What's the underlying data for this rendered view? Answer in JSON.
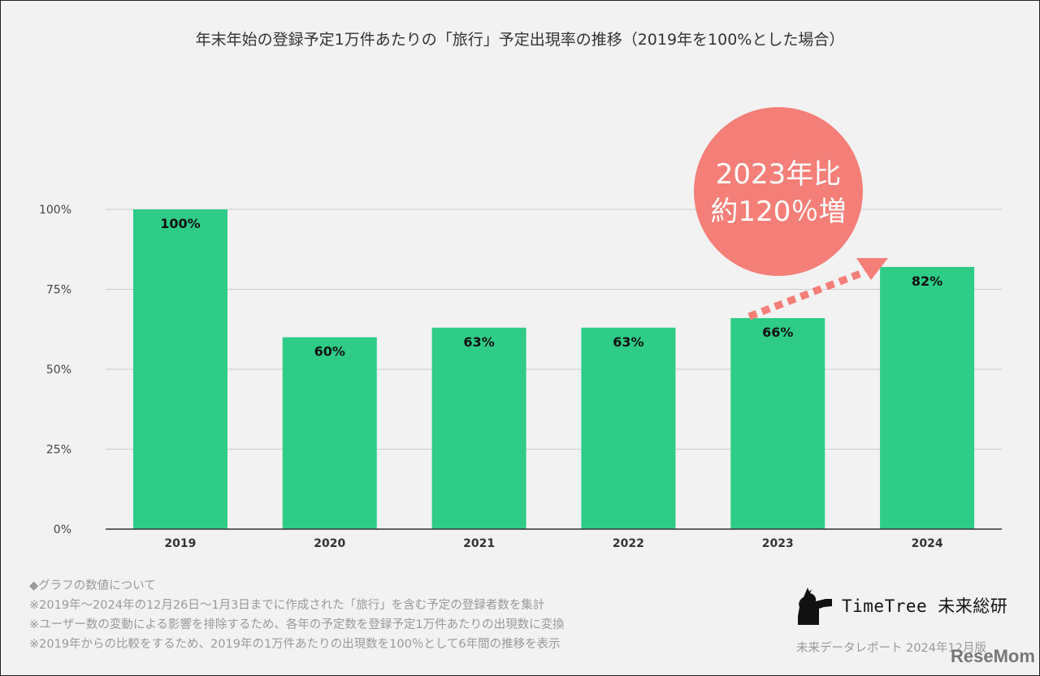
{
  "chart_data": {
    "type": "bar",
    "title": "年末年始の登録予定1万件あたりの「旅行」予定出現率の推移（2019年を100%とした場合）",
    "categories": [
      "2019",
      "2020",
      "2021",
      "2022",
      "2023",
      "2024"
    ],
    "values": [
      100,
      60,
      63,
      63,
      66,
      82
    ],
    "data_labels": [
      "100%",
      "60%",
      "63%",
      "63%",
      "66%",
      "82%"
    ],
    "ylim": [
      0,
      100
    ],
    "yticks": [
      "0%",
      "25%",
      "50%",
      "75%",
      "100%"
    ],
    "ytick_values": [
      0,
      25,
      50,
      75,
      100
    ],
    "grid": true,
    "bar_color": "#2ecc87",
    "annotation": {
      "line1": "2023年比",
      "line2": "約120％増",
      "color": "#f47f78"
    }
  },
  "notes": [
    "◆グラフの数値について",
    "※2019年～2024年の12月26日～1月3日までに作成された「旅行」を含む予定の登録者数を集計",
    "※ユーザー数の変動による影響を排除するため、各年の予定数を登録予定1万件あたりの出現数に変換",
    "※2019年からの比較をするため、2019年の1万件あたりの出現数を100％として6年間の推移を表示"
  ],
  "logo_text": "TimeTree 未来総研",
  "report_label": "未来データレポート 2024年12月版",
  "watermark": "ReseMom"
}
